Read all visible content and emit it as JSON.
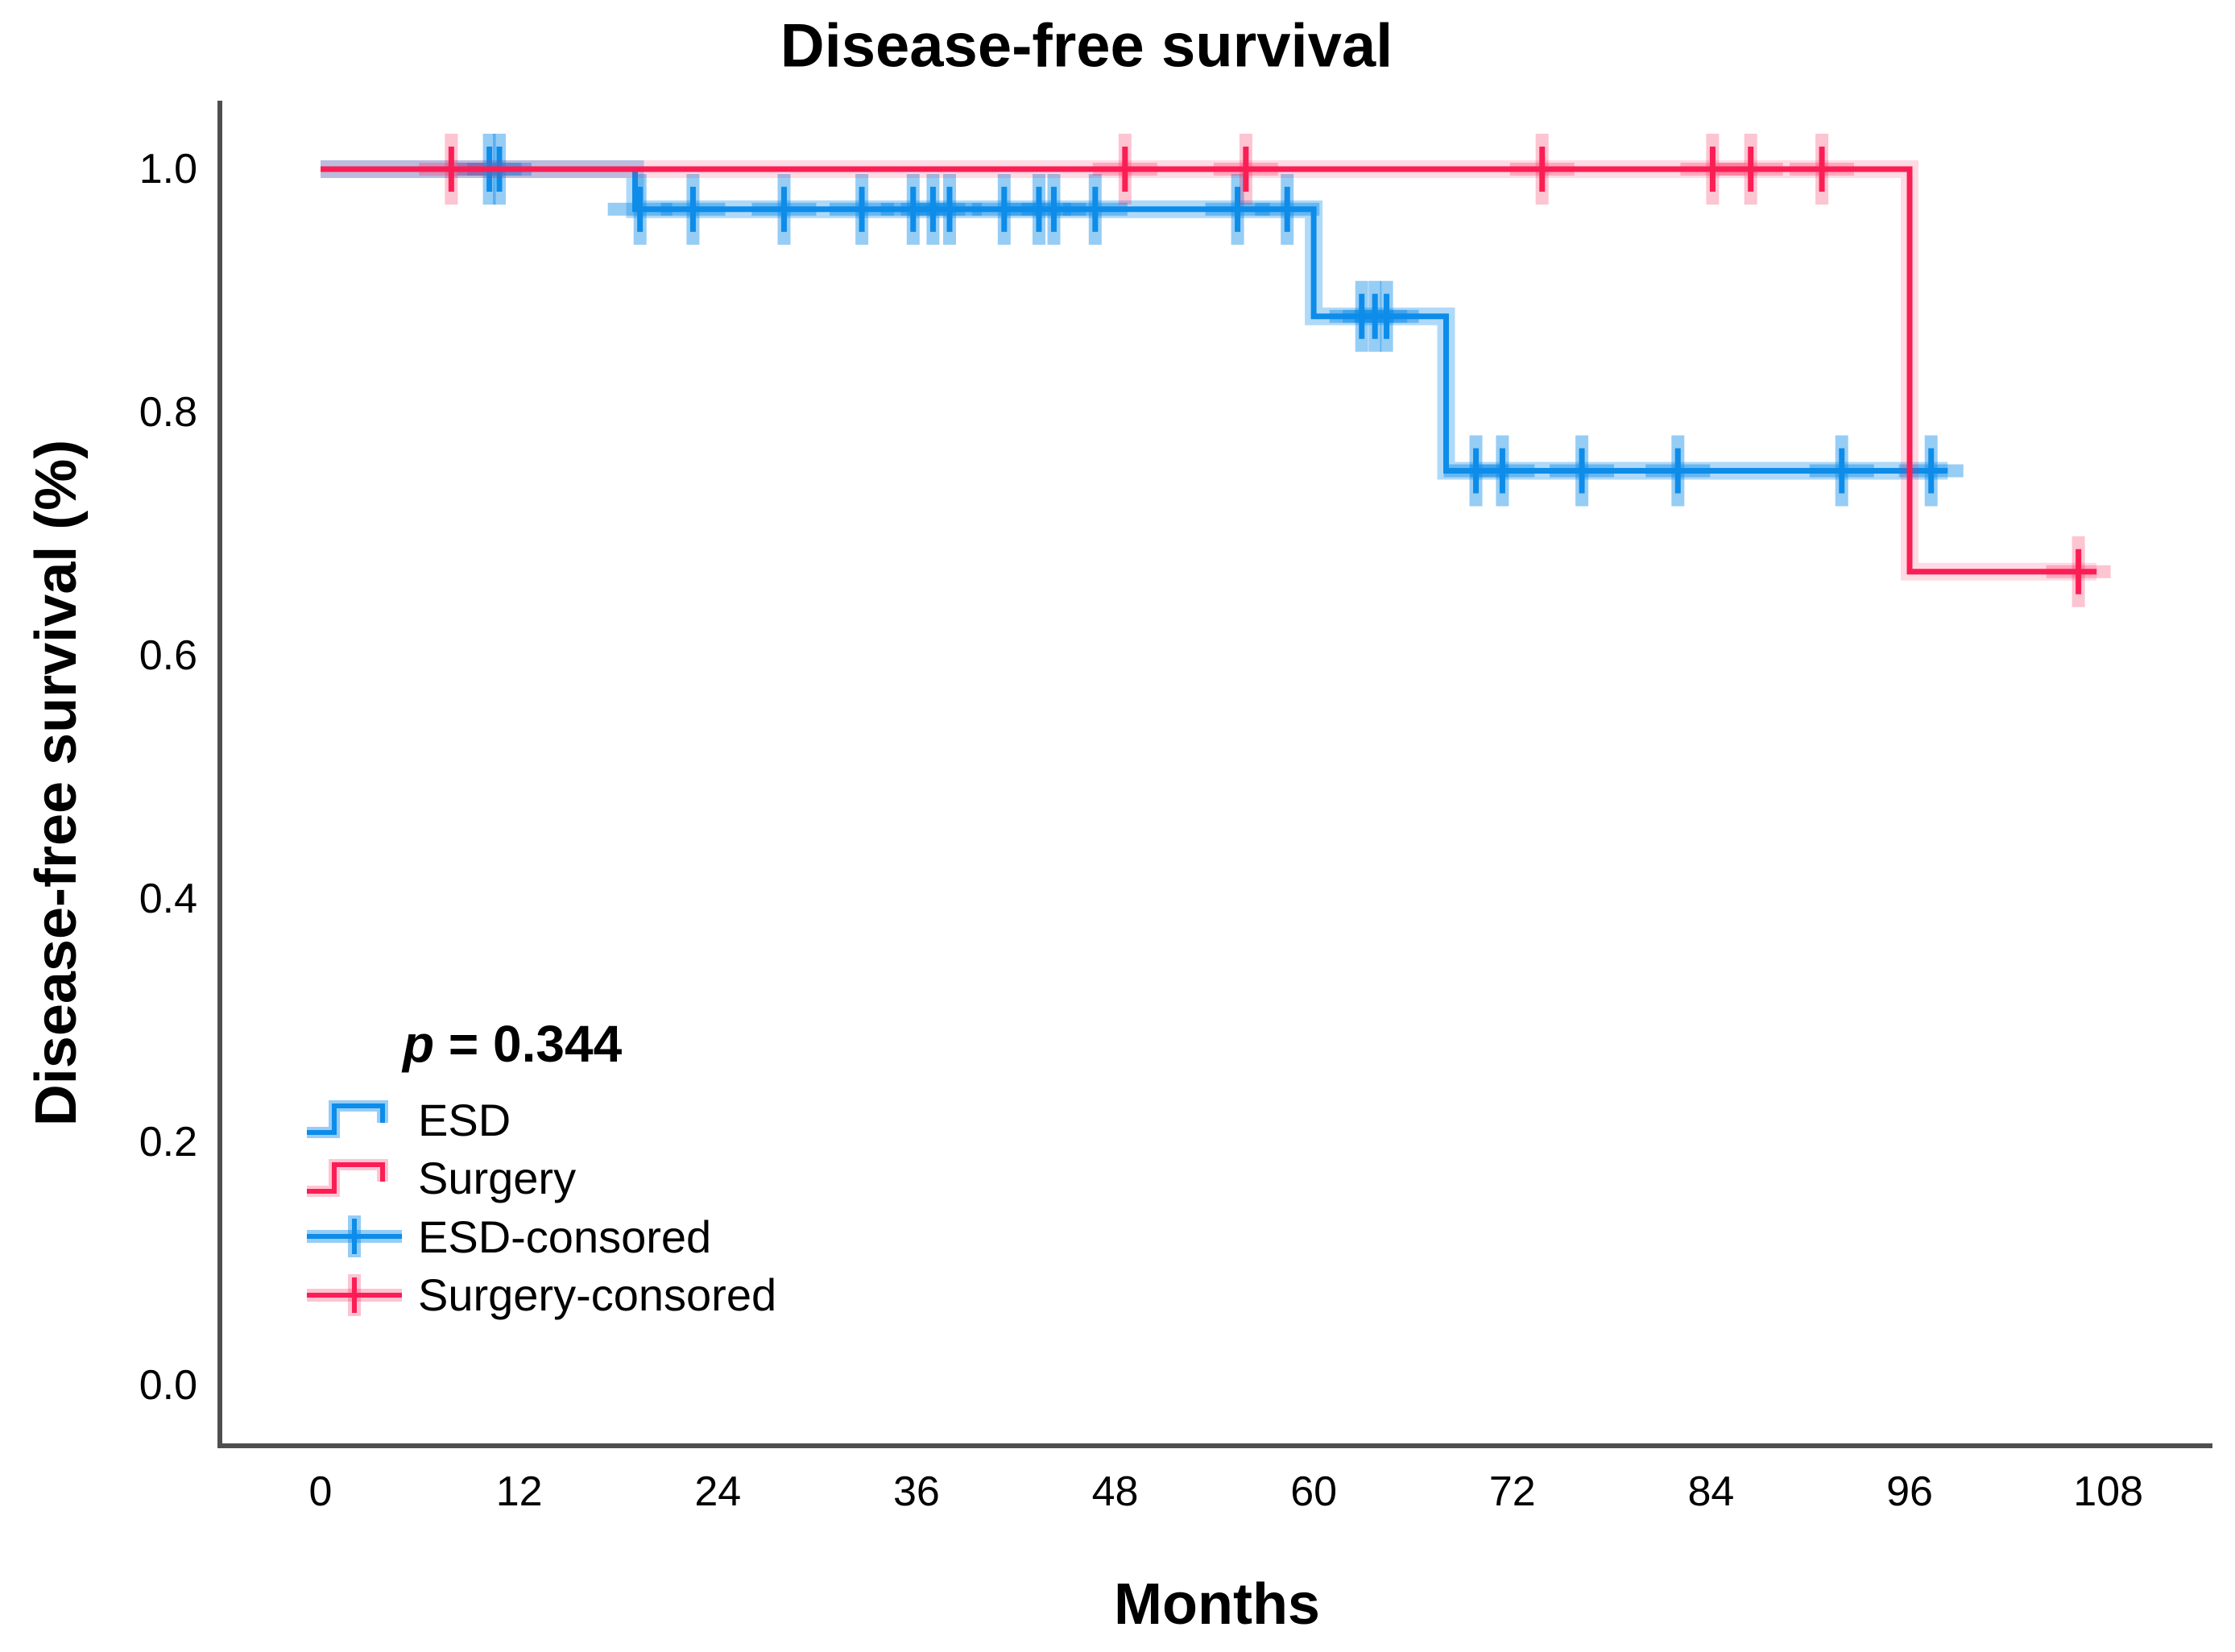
{
  "title": "Disease-free survival",
  "p_stat": {
    "symbol": "p",
    "rest": " = 0.344"
  },
  "colors": {
    "esd": "#0d8ce9",
    "surgery": "#fb1e55",
    "axis": "#4f4f4f",
    "text": "#000000",
    "background": "#ffffff"
  },
  "axes": {
    "x": {
      "label": "Months",
      "min": 0,
      "max": 108,
      "ticks": [
        0,
        12,
        24,
        36,
        48,
        60,
        72,
        84,
        96,
        108
      ]
    },
    "y": {
      "label": "Disease-free survival (%)",
      "min": 0.0,
      "max": 1.0,
      "ticks": [
        1.0,
        0.8,
        0.6,
        0.4,
        0.2,
        0.0
      ],
      "tick_labels": [
        "1.0",
        "0.8",
        "0.6",
        "0.4",
        "0.2",
        "0.0"
      ]
    }
  },
  "legend": [
    {
      "label": "ESD",
      "type": "step-line",
      "series": "ESD"
    },
    {
      "label": "Surgery",
      "type": "step-line",
      "series": "Surgery"
    },
    {
      "label": "ESD-consored",
      "type": "cross",
      "series": "ESD"
    },
    {
      "label": "Surgery-consored",
      "type": "cross",
      "series": "Surgery"
    }
  ],
  "chart_data": {
    "type": "line",
    "subtype": "kaplan-meier-step",
    "title": "Disease-free survival",
    "xlabel": "Months",
    "ylabel": "Disease-free survival (%)",
    "xlim": [
      0,
      108
    ],
    "ylim": [
      0.0,
      1.0
    ],
    "grid": false,
    "legend_position": "inside-lower-left",
    "annotation": "p = 0.344",
    "series": [
      {
        "name": "ESD",
        "color": "#0d8ce9",
        "halo_opacity": 0.33,
        "steps": [
          [
            0,
            1.0
          ],
          [
            19,
            1.0
          ],
          [
            19,
            0.967
          ],
          [
            60,
            0.967
          ],
          [
            60,
            0.879
          ],
          [
            68,
            0.879
          ],
          [
            68,
            0.752
          ],
          [
            98.3,
            0.752
          ]
        ],
        "censored": [
          [
            10.2,
            1.0
          ],
          [
            10.8,
            1.0
          ],
          [
            19.3,
            0.967
          ],
          [
            22.5,
            0.967
          ],
          [
            28.0,
            0.967
          ],
          [
            32.7,
            0.967
          ],
          [
            35.8,
            0.967
          ],
          [
            37.0,
            0.967
          ],
          [
            38.0,
            0.967
          ],
          [
            41.3,
            0.967
          ],
          [
            43.4,
            0.967
          ],
          [
            44.3,
            0.967
          ],
          [
            46.8,
            0.967
          ],
          [
            55.4,
            0.967
          ],
          [
            58.4,
            0.967
          ],
          [
            62.9,
            0.879
          ],
          [
            63.7,
            0.879
          ],
          [
            64.4,
            0.879
          ],
          [
            69.8,
            0.752
          ],
          [
            71.4,
            0.752
          ],
          [
            76.2,
            0.752
          ],
          [
            82.0,
            0.752
          ],
          [
            91.9,
            0.752
          ],
          [
            97.3,
            0.752
          ]
        ]
      },
      {
        "name": "Surgery",
        "color": "#fb1e55",
        "halo_opacity": 0.16,
        "steps": [
          [
            0,
            1.0
          ],
          [
            96,
            1.0
          ],
          [
            96,
            0.669
          ],
          [
            107.3,
            0.669
          ]
        ],
        "censored": [
          [
            7.9,
            1.0
          ],
          [
            48.6,
            1.0
          ],
          [
            55.9,
            1.0
          ],
          [
            73.8,
            1.0
          ],
          [
            84.1,
            1.0
          ],
          [
            86.4,
            1.0
          ],
          [
            90.7,
            1.0
          ],
          [
            106.2,
            0.669
          ]
        ]
      }
    ]
  }
}
